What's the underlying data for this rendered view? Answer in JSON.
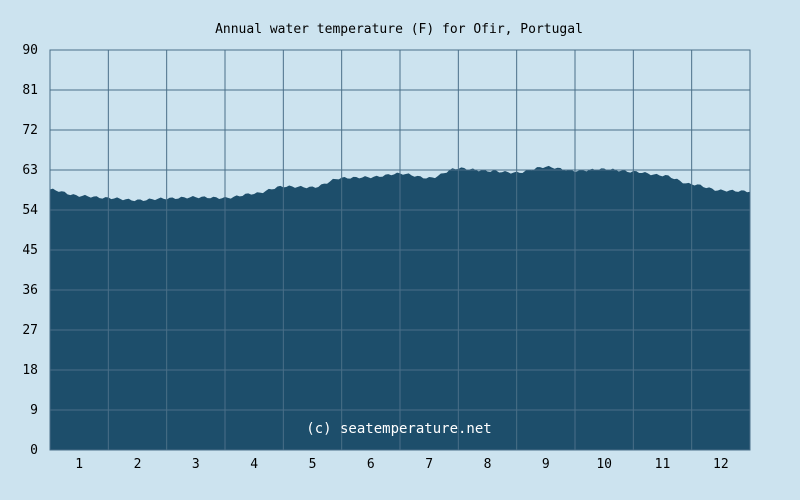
{
  "chart_data": {
    "type": "area",
    "title": "Annual water temperature (F) for Ofir, Portugal",
    "xlabel": "",
    "ylabel": "",
    "x_ticks": [
      "1",
      "2",
      "3",
      "4",
      "5",
      "6",
      "7",
      "8",
      "9",
      "10",
      "11",
      "12"
    ],
    "x": [
      0.5,
      1.0,
      1.5,
      2.0,
      2.5,
      3.0,
      3.5,
      4.0,
      4.5,
      5.0,
      5.5,
      6.0,
      6.5,
      7.0,
      7.5,
      8.0,
      8.5,
      9.0,
      9.5,
      10.0,
      10.5,
      11.0,
      11.5,
      12.0,
      12.5
    ],
    "values": [
      58.6,
      57.2,
      56.7,
      56.2,
      56.6,
      56.9,
      56.7,
      57.7,
      59.3,
      59.1,
      61.2,
      61.4,
      62.2,
      61.2,
      63.4,
      62.8,
      62.4,
      63.7,
      62.8,
      63.2,
      62.6,
      61.8,
      59.8,
      58.4,
      58.2
    ],
    "ylim": [
      0,
      90
    ],
    "xlim": [
      0.5,
      12.5
    ],
    "y_ticks": [
      0,
      9,
      18,
      27,
      36,
      45,
      54,
      63,
      72,
      81,
      90
    ],
    "grid": true,
    "annotation": "(c) seatemperature.net",
    "colors": {
      "fill": "#1d4e6b",
      "grid": "#4a6f88",
      "background": "#cce3ef"
    }
  }
}
